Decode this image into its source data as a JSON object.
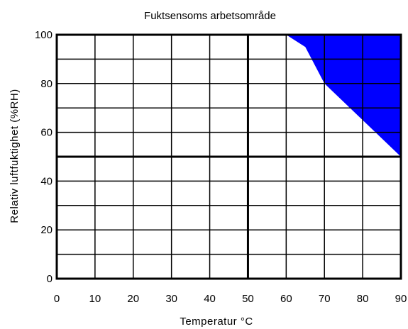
{
  "chart_data": {
    "type": "area",
    "title": "Fuktsensoms arbetsområde",
    "xlabel": "Temperatur °C",
    "ylabel": "Relativ luftfuktighet (%RH)",
    "xlim": [
      0,
      90
    ],
    "ylim": [
      0,
      100
    ],
    "x_ticks": [
      "0",
      "10",
      "20",
      "30",
      "40",
      "50",
      "60",
      "70",
      "80",
      "90"
    ],
    "y_ticks": [
      "0",
      "20",
      "40",
      "60",
      "80",
      "100"
    ],
    "grid": true,
    "grid_y_step": 10,
    "fill_color": "#0000ff",
    "region": {
      "name": "",
      "boundary": [
        {
          "x": 60,
          "y": 100
        },
        {
          "x": 65,
          "y": 95
        },
        {
          "x": 70,
          "y": 80
        },
        {
          "x": 80,
          "y": 65
        },
        {
          "x": 90,
          "y": 50
        }
      ],
      "fill_to": {
        "x": 90,
        "y": 100
      }
    }
  }
}
